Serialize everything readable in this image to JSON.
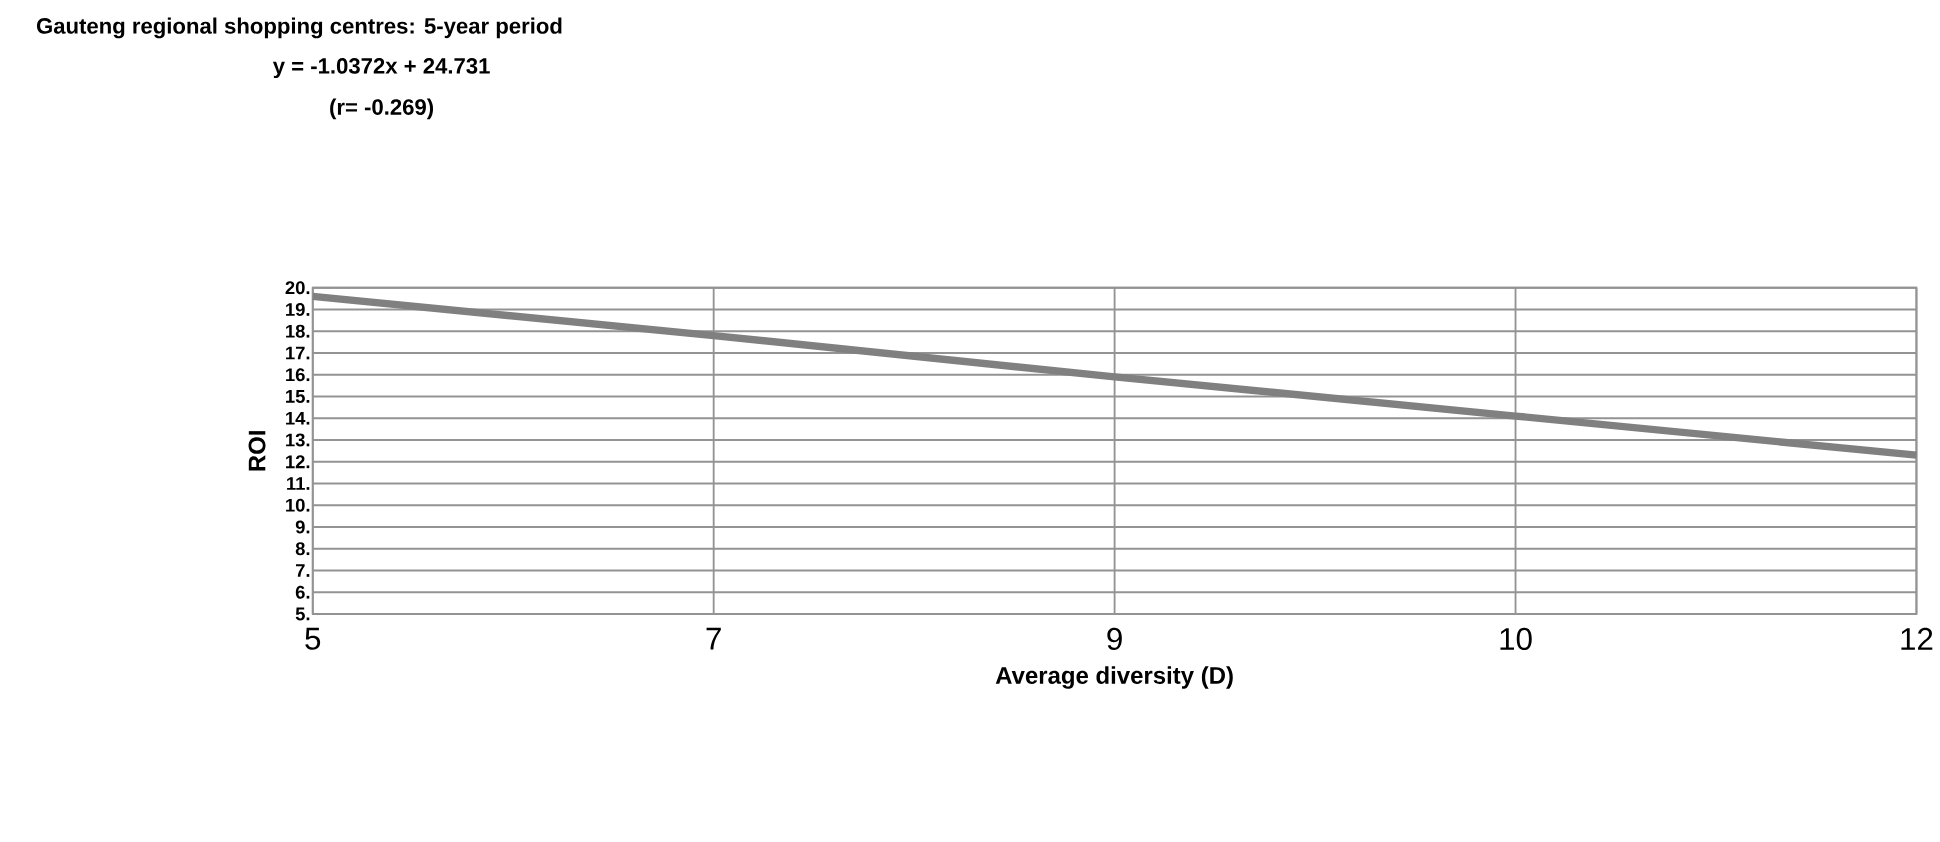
{
  "chart_data": {
    "type": "line",
    "title": "Gauteng regional shopping centres: 5-year period",
    "subtitle": "y = -1.0372x + 24.731",
    "annotations": [
      "(r= -0.269)"
    ],
    "xlabel": "Average diversity (D)",
    "ylabel": "ROI",
    "categories": [
      "5",
      "7",
      "9",
      "10",
      "12"
    ],
    "series": [
      {
        "color": "#808080",
        "values": [
          19.6,
          17.8,
          15.9,
          14.1,
          12.3
        ]
      }
    ],
    "ylim": [
      5,
      20
    ],
    "yticks": [
      {
        "value": 5,
        "label": "5."
      },
      {
        "value": 6,
        "label": "6."
      },
      {
        "value": 7,
        "label": "7."
      },
      {
        "value": 8,
        "label": "8."
      },
      {
        "value": 9,
        "label": "9."
      },
      {
        "value": 10,
        "label": "10."
      },
      {
        "value": 11,
        "label": "11."
      },
      {
        "value": 12,
        "label": "12."
      },
      {
        "value": 13,
        "label": "13."
      },
      {
        "value": 14,
        "label": "14."
      },
      {
        "value": 15,
        "label": "15."
      },
      {
        "value": 16,
        "label": "16."
      },
      {
        "value": 17,
        "label": "17."
      },
      {
        "value": 18,
        "label": "18."
      },
      {
        "value": 19,
        "label": "19."
      },
      {
        "value": 20,
        "label": "20."
      }
    ],
    "grid": true
  }
}
